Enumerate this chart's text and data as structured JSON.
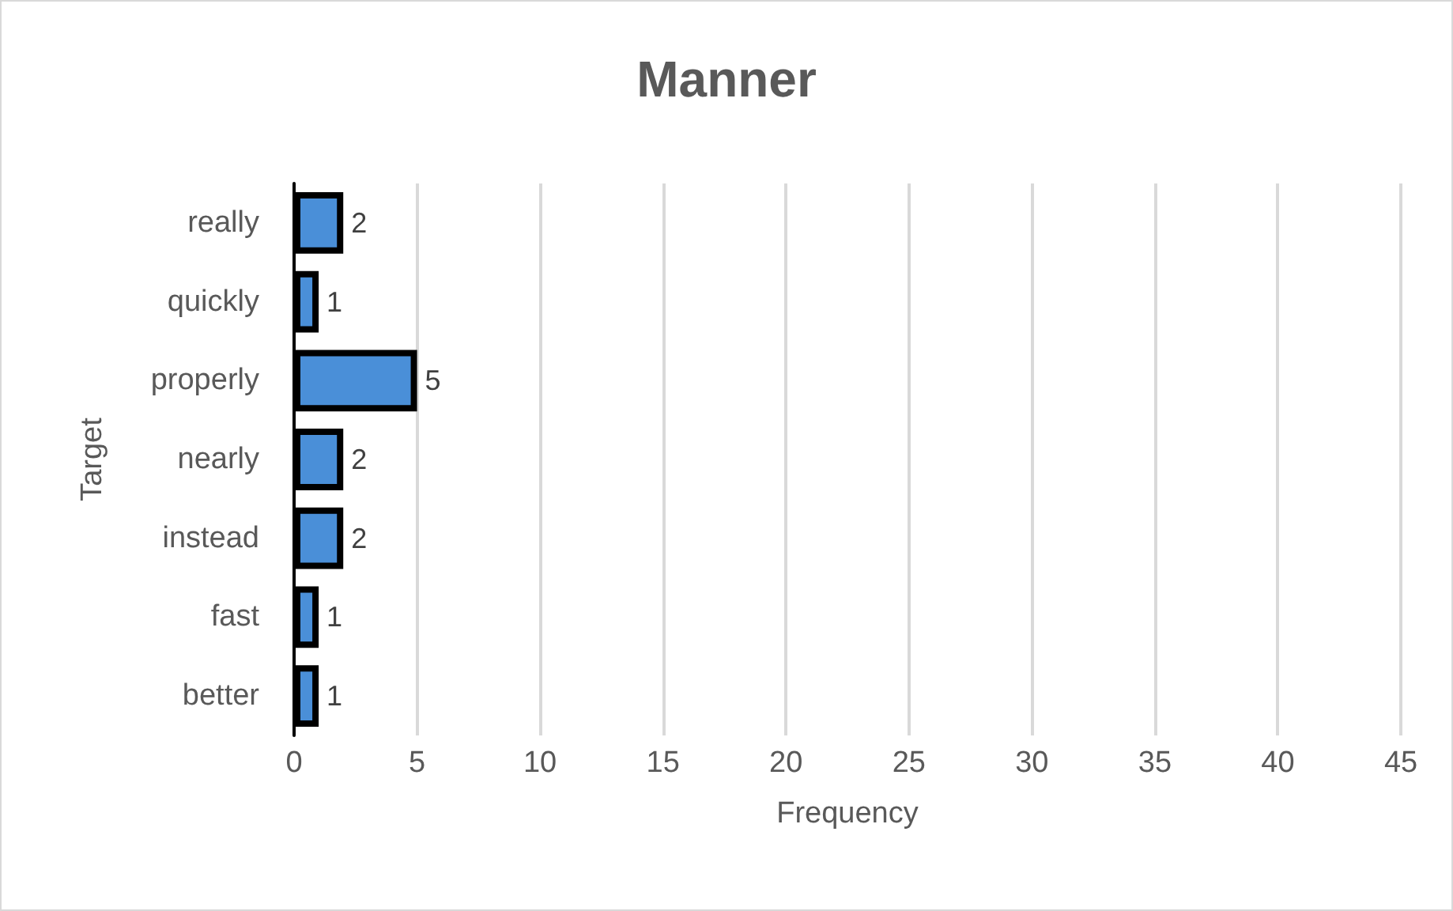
{
  "chart_data": {
    "type": "bar",
    "title": "Manner",
    "xlabel": "Frequency",
    "ylabel": "Target",
    "orientation": "horizontal",
    "categories": [
      "really",
      "quickly",
      "properly",
      "nearly",
      "instead",
      "fast",
      "better"
    ],
    "values": [
      2,
      1,
      5,
      2,
      2,
      1,
      1
    ],
    "color": "#4a8fd8",
    "xlim": [
      0,
      45
    ],
    "xticks": [
      0,
      5,
      10,
      15,
      20,
      25,
      30,
      35,
      40,
      45
    ],
    "grid": "x",
    "data_labels": true
  }
}
